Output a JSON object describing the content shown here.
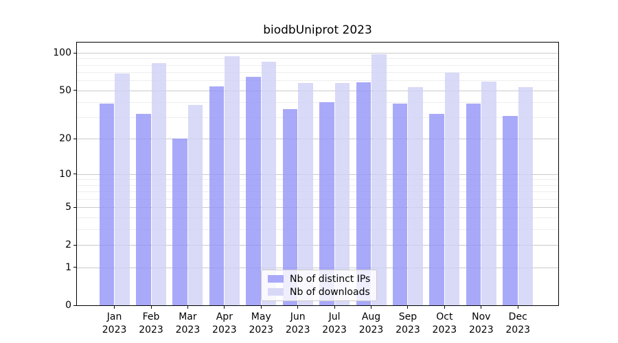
{
  "figure": {
    "title": "biodbUniprot 2023"
  },
  "colors": {
    "bar_distinct_ips": "#a9a9f9",
    "bar_downloads": "#d8d8f6",
    "grid_major": "#c9c9c9",
    "grid_minor": "#ededed",
    "axis": "#000000",
    "legend_border": "#cccccc"
  },
  "legend": {
    "items": [
      {
        "label": "Nb of distinct IPs",
        "series_key": "ips"
      },
      {
        "label": "Nb of downloads",
        "series_key": "downloads"
      }
    ]
  },
  "chart_data": {
    "type": "bar",
    "title": "biodbUniprot 2023",
    "categories": [
      "Jan",
      "Feb",
      "Mar",
      "Apr",
      "May",
      "Jun",
      "Jul",
      "Aug",
      "Sep",
      "Oct",
      "Nov",
      "Dec"
    ],
    "year_label": "2023",
    "series": [
      {
        "name": "Nb of distinct IPs",
        "key": "ips",
        "values": [
          39,
          32,
          20,
          54,
          64,
          35,
          40,
          58,
          39,
          32,
          39,
          31
        ]
      },
      {
        "name": "Nb of downloads",
        "key": "downloads",
        "values": [
          68,
          83,
          38,
          94,
          85,
          57,
          57,
          98,
          53,
          69,
          59,
          53
        ]
      }
    ],
    "yscale": "log1p",
    "ylim": [
      0,
      121
    ],
    "y_major_ticks": [
      0,
      1,
      2,
      5,
      10,
      20,
      50,
      100
    ],
    "y_minor_gridlines": [
      3,
      4,
      6,
      7,
      8,
      9,
      30,
      40,
      60,
      70,
      80,
      90
    ],
    "grid": true,
    "legend_position": "lower center"
  }
}
